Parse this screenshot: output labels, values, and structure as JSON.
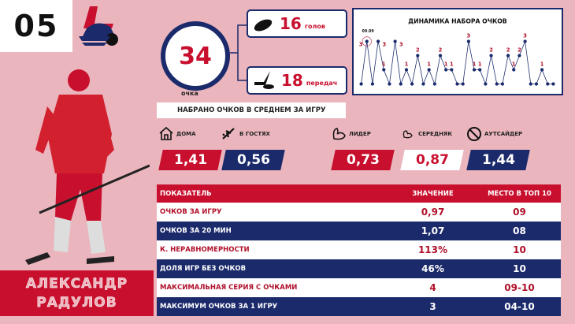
{
  "jersey_number": "05",
  "team_logo": "lokomotiv-logo",
  "points": {
    "value": "34",
    "label": "очка"
  },
  "goals": {
    "value": "16",
    "label": "голов",
    "icon": "puck-icon"
  },
  "assists": {
    "value": "18",
    "label": "передач",
    "icon": "stick-puck-icon"
  },
  "avg_title": "НАБРАНО ОЧКОВ В СРЕДНЕМ ЗА ИГРУ",
  "splits": [
    {
      "label": "ДОМА",
      "value": "1,41",
      "icon": "home-icon",
      "color": "#c8102e"
    },
    {
      "label": "В ГОСТЯХ",
      "value": "0,56",
      "icon": "plane-icon",
      "color": "#1b2a6b"
    },
    {
      "label": "ЛИДЕР",
      "value": "0,73",
      "icon": "strong-arm-icon",
      "color": "#c8102e"
    },
    {
      "label": "СЕРЕДНЯК",
      "value": "0,87",
      "icon": "arm-icon",
      "color": "#ffffff"
    },
    {
      "label": "АУТСАЙДЕР",
      "value": "1,44",
      "icon": "no-arm-icon",
      "color": "#1b2a6b"
    }
  ],
  "chart_data": {
    "type": "line",
    "title": "ДИНАМИКА НАБОРА ОЧКОВ",
    "annotation": "09.09",
    "values": [
      0,
      3,
      0,
      3,
      1,
      0,
      3,
      0,
      1,
      0,
      2,
      0,
      1,
      0,
      2,
      1,
      1,
      0,
      0,
      3,
      1,
      1,
      0,
      2,
      0,
      0,
      2,
      1,
      2,
      3,
      0,
      0,
      1,
      0,
      0
    ],
    "ylim": [
      0,
      3
    ],
    "colors": {
      "line": "#1b2a6b",
      "label": "#b0102a"
    }
  },
  "table": {
    "headers": [
      "ПОКАЗАТЕЛЬ",
      "ЗНАЧЕНИЕ",
      "МЕСТО В ТОП 10"
    ],
    "rows": [
      [
        "ОЧКОВ ЗА ИГРУ",
        "0,97",
        "09"
      ],
      [
        "ОЧКОВ ЗА 20 МИН",
        "1,07",
        "08"
      ],
      [
        "К. НЕРАВНОМЕРНОСТИ",
        "113%",
        "10"
      ],
      [
        "ДОЛЯ ИГР БЕЗ ОЧКОВ",
        "46%",
        "10"
      ],
      [
        "МАКСИМАЛЬНАЯ СЕРИЯ С ОЧКАМИ",
        "4",
        "09-10"
      ],
      [
        "МАКСИМУМ ОЧКОВ ЗА 1 ИГРУ",
        "3",
        "04-10"
      ]
    ]
  },
  "player": {
    "first_name": "АЛЕКСАНДР",
    "last_name": "РАДУЛОВ"
  },
  "colors": {
    "red": "#c8102e",
    "navy": "#1b2a6b",
    "background": "#ebb5bd"
  }
}
